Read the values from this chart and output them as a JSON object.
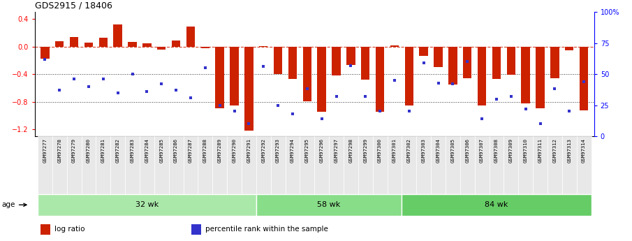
{
  "title": "GDS2915 / 18406",
  "samples": [
    "GSM97277",
    "GSM97278",
    "GSM97279",
    "GSM97280",
    "GSM97281",
    "GSM97282",
    "GSM97283",
    "GSM97284",
    "GSM97285",
    "GSM97286",
    "GSM97287",
    "GSM97288",
    "GSM97289",
    "GSM97290",
    "GSM97291",
    "GSM97292",
    "GSM97293",
    "GSM97294",
    "GSM97295",
    "GSM97296",
    "GSM97297",
    "GSM97298",
    "GSM97299",
    "GSM97300",
    "GSM97301",
    "GSM97302",
    "GSM97303",
    "GSM97304",
    "GSM97305",
    "GSM97306",
    "GSM97307",
    "GSM97308",
    "GSM97309",
    "GSM97310",
    "GSM97311",
    "GSM97312",
    "GSM97313",
    "GSM97314"
  ],
  "log_ratio": [
    -0.18,
    0.08,
    0.14,
    0.06,
    0.13,
    0.32,
    0.07,
    0.05,
    -0.04,
    0.09,
    0.29,
    -0.02,
    -0.9,
    -0.85,
    -1.22,
    0.01,
    -0.4,
    -0.47,
    -0.79,
    -0.95,
    -0.42,
    -0.27,
    -0.48,
    -0.95,
    0.02,
    -0.85,
    -0.14,
    -0.3,
    -0.55,
    -0.46,
    -0.85,
    -0.47,
    -0.41,
    -0.82,
    -0.9,
    -0.46,
    -0.05,
    -0.93
  ],
  "percentile": [
    0.62,
    0.37,
    0.46,
    0.4,
    0.46,
    0.35,
    0.5,
    0.36,
    0.42,
    0.37,
    0.31,
    0.55,
    0.25,
    0.2,
    0.1,
    0.56,
    0.25,
    0.18,
    0.38,
    0.14,
    0.32,
    0.57,
    0.32,
    0.2,
    0.45,
    0.2,
    0.59,
    0.43,
    0.42,
    0.6,
    0.14,
    0.3,
    0.32,
    0.22,
    0.1,
    0.38,
    0.2,
    0.44
  ],
  "groups": [
    {
      "label": "32 wk",
      "start": 0,
      "end": 15,
      "color": "#aae8aa"
    },
    {
      "label": "58 wk",
      "start": 15,
      "end": 25,
      "color": "#88dd88"
    },
    {
      "label": "84 wk",
      "start": 25,
      "end": 38,
      "color": "#66cc66"
    }
  ],
  "bar_color": "#cc2200",
  "dot_color": "#3333cc",
  "ylim": [
    -1.3,
    0.5
  ],
  "right_ylim": [
    0,
    100
  ],
  "right_yticks": [
    0,
    25,
    50,
    75,
    100
  ],
  "right_yticklabels": [
    "0",
    "25",
    "50",
    "75",
    "100%"
  ],
  "yticks": [
    -1.2,
    -0.8,
    -0.4,
    0,
    0.4
  ],
  "dotline_y": [
    -0.4,
    -0.8
  ],
  "legend": [
    {
      "color": "#cc2200",
      "label": "log ratio"
    },
    {
      "color": "#3333cc",
      "label": "percentile rank within the sample"
    }
  ]
}
